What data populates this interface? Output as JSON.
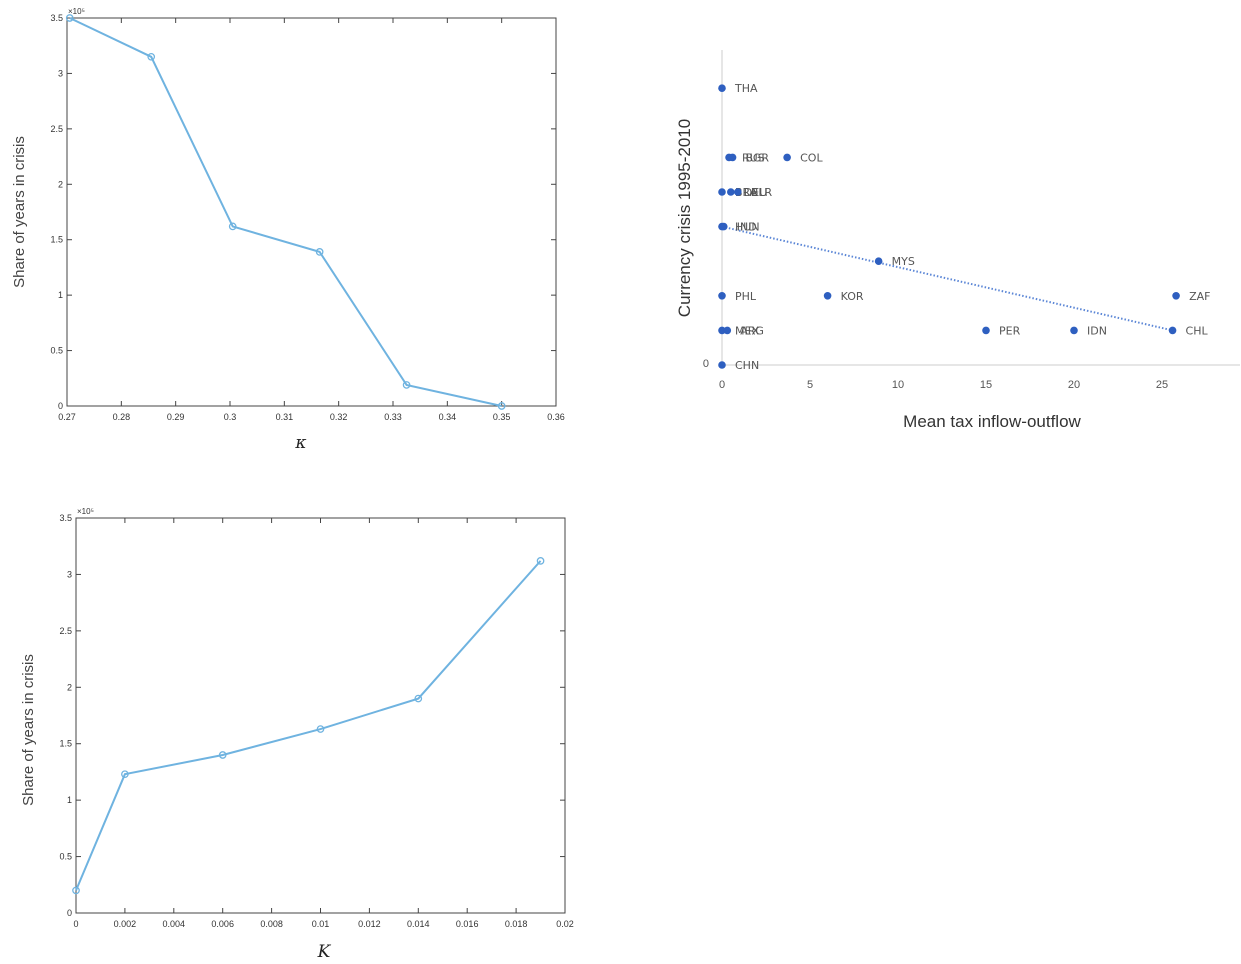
{
  "chart_data": [
    {
      "type": "line",
      "xlabel": "κ",
      "ylabel": "Share of years in crisis",
      "y_exponent": "×10⁵",
      "xlim": [
        0.27,
        0.36
      ],
      "ylim": [
        0,
        3.5
      ],
      "xticks": [
        0.27,
        0.28,
        0.29,
        0.3,
        0.31,
        0.32,
        0.33,
        0.34,
        0.35,
        0.36
      ],
      "xtick_labels": [
        "0.27",
        "0.28",
        "0.29",
        "0.3",
        "0.31",
        "0.32",
        "0.33",
        "0.34",
        "0.35",
        "0.36"
      ],
      "yticks": [
        0,
        0.5,
        1,
        1.5,
        2,
        2.5,
        3,
        3.5
      ],
      "ytick_labels": [
        "0",
        "0.5",
        "1",
        "1.5",
        "2",
        "2.5",
        "3",
        "3.5"
      ],
      "x": [
        0.2705,
        0.2855,
        0.3005,
        0.3165,
        0.3325,
        0.35
      ],
      "y": [
        3.5,
        3.15,
        1.62,
        1.39,
        0.19,
        0.0
      ],
      "color": "#6fb3e0",
      "grid": false
    },
    {
      "type": "scatter",
      "xlabel": "Mean tax inflow-outflow",
      "ylabel": "Currency crisis 1995-2010",
      "xlim": [
        0,
        29
      ],
      "ylim": [
        0,
        8
      ],
      "xticks": [
        0,
        5,
        10,
        15,
        20,
        25
      ],
      "xtick_labels": [
        "0",
        "5",
        "10",
        "15",
        "20",
        "25"
      ],
      "ytick_labels": [
        "0"
      ],
      "points": [
        {
          "label": "THA",
          "x": 0,
          "y": 8
        },
        {
          "label": "RUS",
          "x": 0.4,
          "y": 6
        },
        {
          "label": "BGR",
          "x": 0.6,
          "y": 6
        },
        {
          "label": "COL",
          "x": 3.7,
          "y": 6
        },
        {
          "label": "BRA",
          "x": 0,
          "y": 5
        },
        {
          "label": "DEU",
          "x": 0.5,
          "y": 5
        },
        {
          "label": "BLR",
          "x": 0.9,
          "y": 5
        },
        {
          "label": "HUN",
          "x": 0,
          "y": 4
        },
        {
          "label": "IND",
          "x": 0.1,
          "y": 4
        },
        {
          "label": "MYS",
          "x": 8.9,
          "y": 3
        },
        {
          "label": "PHL",
          "x": 0,
          "y": 2
        },
        {
          "label": "KOR",
          "x": 6,
          "y": 2
        },
        {
          "label": "ZAF",
          "x": 25.8,
          "y": 2
        },
        {
          "label": "MEX",
          "x": 0,
          "y": 1
        },
        {
          "label": "ARG",
          "x": 0.3,
          "y": 1
        },
        {
          "label": "PER",
          "x": 15,
          "y": 1
        },
        {
          "label": "IDN",
          "x": 20,
          "y": 1
        },
        {
          "label": "CHL",
          "x": 25.6,
          "y": 1
        },
        {
          "label": "CHN",
          "x": 0,
          "y": 0
        }
      ],
      "trendline": {
        "x": [
          0,
          25.6
        ],
        "y": [
          4,
          1
        ],
        "style": "dotted"
      },
      "color": "#2e5fc0",
      "grid": false
    },
    {
      "type": "line",
      "xlabel": "K",
      "ylabel": "Share of years in crisis",
      "y_exponent": "×10⁵",
      "xlim": [
        0,
        0.02
      ],
      "ylim": [
        0,
        3.5
      ],
      "xticks": [
        0,
        0.002,
        0.004,
        0.006,
        0.008,
        0.01,
        0.012,
        0.014,
        0.016,
        0.018,
        0.02
      ],
      "xtick_labels": [
        "0",
        "0.002",
        "0.004",
        "0.006",
        "0.008",
        "0.01",
        "0.012",
        "0.014",
        "0.016",
        "0.018",
        "0.02"
      ],
      "yticks": [
        0,
        0.5,
        1,
        1.5,
        2,
        2.5,
        3,
        3.5
      ],
      "ytick_labels": [
        "0",
        "0.5",
        "1",
        "1.5",
        "2",
        "2.5",
        "3",
        "3.5"
      ],
      "x": [
        0.0,
        0.002,
        0.006,
        0.01,
        0.014,
        0.019
      ],
      "y": [
        0.2,
        1.23,
        1.4,
        1.63,
        1.9,
        3.12
      ],
      "color": "#6fb3e0",
      "grid": false
    }
  ]
}
